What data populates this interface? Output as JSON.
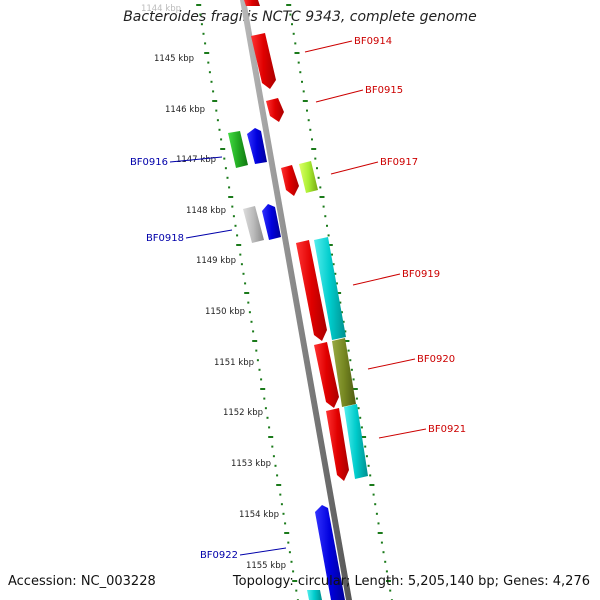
{
  "title": "Bacteroides fragilis NCTC 9343, complete genome",
  "footer": {
    "accession": "Accession: NC_003228",
    "summary": "Topology: circular; Length: 5,205,140 bp; Genes: 4,276"
  },
  "colors": {
    "backbone": "#8c8c8c",
    "tick": "#1a7a1a",
    "label_forward": "#cc0000",
    "label_reverse": "#0000aa"
  },
  "scale_labels": [
    "1144 kbp",
    "1145 kbp",
    "1146 kbp",
    "1147 kbp",
    "1148 kbp",
    "1149 kbp",
    "1150 kbp",
    "1151 kbp",
    "1152 kbp",
    "1153 kbp",
    "1154 kbp",
    "1155 kbp"
  ],
  "genes": [
    {
      "label": "BF0914",
      "strand": "forward",
      "color": "#ff0000"
    },
    {
      "label": "BF0915",
      "strand": "forward",
      "color": "#ff0000"
    },
    {
      "label": "BF0916",
      "strand": "reverse",
      "color": "#22bb22"
    },
    {
      "label": "BF0917",
      "strand": "forward",
      "color": "#aaee33"
    },
    {
      "label": "BF0918",
      "strand": "reverse",
      "color": "#bbbbbb"
    },
    {
      "label": "BF0919",
      "strand": "forward",
      "color": "#00cccc"
    },
    {
      "label": "BF0920",
      "strand": "forward",
      "color": "#778822"
    },
    {
      "label": "BF0921",
      "strand": "forward",
      "color": "#00cccc"
    },
    {
      "label": "BF0922",
      "strand": "reverse",
      "color": "#0000ee"
    }
  ]
}
